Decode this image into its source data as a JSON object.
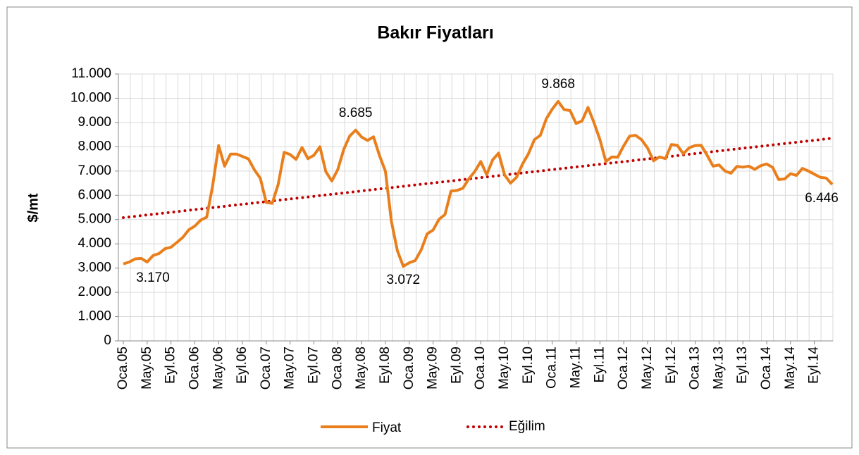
{
  "chart_data": {
    "type": "line",
    "title": "Bakır Fiyatları",
    "y_label": "$/mt",
    "categories": [
      "Oca.05",
      null,
      null,
      null,
      "May.05",
      null,
      null,
      null,
      "Eyl.05",
      null,
      null,
      null,
      "Oca.06",
      null,
      null,
      null,
      "May.06",
      null,
      null,
      null,
      "Eyl.06",
      null,
      null,
      null,
      "Oca.07",
      null,
      null,
      null,
      "May.07",
      null,
      null,
      null,
      "Eyl.07",
      null,
      null,
      null,
      "Oca.08",
      null,
      null,
      null,
      "May.08",
      null,
      null,
      null,
      "Eyl.08",
      null,
      null,
      null,
      "Oca.09",
      null,
      null,
      null,
      "May.09",
      null,
      null,
      null,
      "Eyl.09",
      null,
      null,
      null,
      "Oca.10",
      null,
      null,
      null,
      "May.10",
      null,
      null,
      null,
      "Eyl.10",
      null,
      null,
      null,
      "Oca.11",
      null,
      null,
      null,
      "May.11",
      null,
      null,
      null,
      "Eyl.11",
      null,
      null,
      null,
      "Oca.12",
      null,
      null,
      null,
      "May.12",
      null,
      null,
      null,
      "Eyl.12",
      null,
      null,
      null,
      "Oca.13",
      null,
      null,
      null,
      "May.13",
      null,
      null,
      null,
      "Eyl.13",
      null,
      null,
      null,
      "Oca.14",
      null,
      null,
      null,
      "May.14",
      null,
      null,
      null,
      "Eyl.14",
      null,
      null,
      null
    ],
    "series": [
      {
        "name": "Fiyat",
        "color": "#e97f1c",
        "values": [
          3170,
          3250,
          3380,
          3400,
          3250,
          3520,
          3600,
          3800,
          3860,
          4060,
          4270,
          4580,
          4730,
          4980,
          5100,
          6400,
          8050,
          7200,
          7700,
          7700,
          7600,
          7500,
          7050,
          6700,
          5700,
          5670,
          6450,
          7770,
          7680,
          7480,
          7970,
          7510,
          7650,
          8000,
          6970,
          6590,
          7060,
          7890,
          8440,
          8685,
          8400,
          8260,
          8410,
          7640,
          6990,
          4930,
          3720,
          3072,
          3220,
          3310,
          3750,
          4410,
          4570,
          5010,
          5210,
          6170,
          6200,
          6290,
          6680,
          6980,
          7390,
          6850,
          7460,
          7740,
          6840,
          6500,
          6740,
          7280,
          7710,
          8290,
          8470,
          9150,
          9550,
          9868,
          9530,
          9490,
          8960,
          9060,
          9620,
          9000,
          8300,
          7390,
          7580,
          7570,
          8040,
          8440,
          8470,
          8290,
          7950,
          7420,
          7580,
          7510,
          8090,
          8060,
          7710,
          7960,
          8050,
          8060,
          7650,
          7200,
          7250,
          7000,
          6910,
          7190,
          7160,
          7200,
          7070,
          7220,
          7290,
          7150,
          6650,
          6670,
          6890,
          6820,
          7110,
          7000,
          6870,
          6740,
          6710,
          6446
        ],
        "value_labels": [
          "3.170",
          null,
          null,
          null,
          null,
          null,
          null,
          null,
          null,
          null,
          null,
          null,
          null,
          null,
          null,
          null,
          null,
          null,
          null,
          null,
          null,
          null,
          null,
          null,
          null,
          null,
          null,
          null,
          null,
          null,
          null,
          null,
          null,
          null,
          null,
          null,
          null,
          null,
          null,
          "8.685",
          null,
          null,
          null,
          null,
          null,
          null,
          null,
          "3.072",
          null,
          null,
          null,
          null,
          null,
          null,
          null,
          null,
          null,
          null,
          null,
          null,
          null,
          null,
          null,
          null,
          null,
          null,
          null,
          null,
          null,
          null,
          null,
          null,
          null,
          "9.868",
          null,
          null,
          null,
          null,
          null,
          null,
          null,
          null,
          null,
          null,
          null,
          null,
          null,
          null,
          null,
          null,
          null,
          null,
          null,
          null,
          null,
          null,
          null,
          null,
          null,
          null,
          null,
          null,
          null,
          null,
          null,
          null,
          null,
          null,
          null,
          null,
          null,
          null,
          null,
          null,
          null,
          null,
          null,
          null,
          null,
          "6.446"
        ]
      }
    ],
    "trend": {
      "name": "Eğilim",
      "color": "#c00000",
      "from": 5080,
      "to": 8350
    },
    "ylim": [
      0,
      11000
    ],
    "yticks": [
      0,
      {
        "value": 1000,
        "label": "1.000"
      },
      {
        "value": 2000,
        "label": "2.000"
      },
      {
        "value": 3000,
        "label": "3.000"
      },
      {
        "value": 4000,
        "label": "4.000"
      },
      {
        "value": 5000,
        "label": "5.000"
      },
      {
        "value": 6000,
        "label": "6.000"
      },
      {
        "value": 7000,
        "label": "7.000"
      },
      {
        "value": 8000,
        "label": "8.000"
      },
      {
        "value": 9000,
        "label": "9.000"
      },
      {
        "value": 10000,
        "label": "10.000"
      },
      {
        "value": 11000,
        "label": "11.000"
      }
    ],
    "grid": true,
    "legend": "bottom"
  }
}
